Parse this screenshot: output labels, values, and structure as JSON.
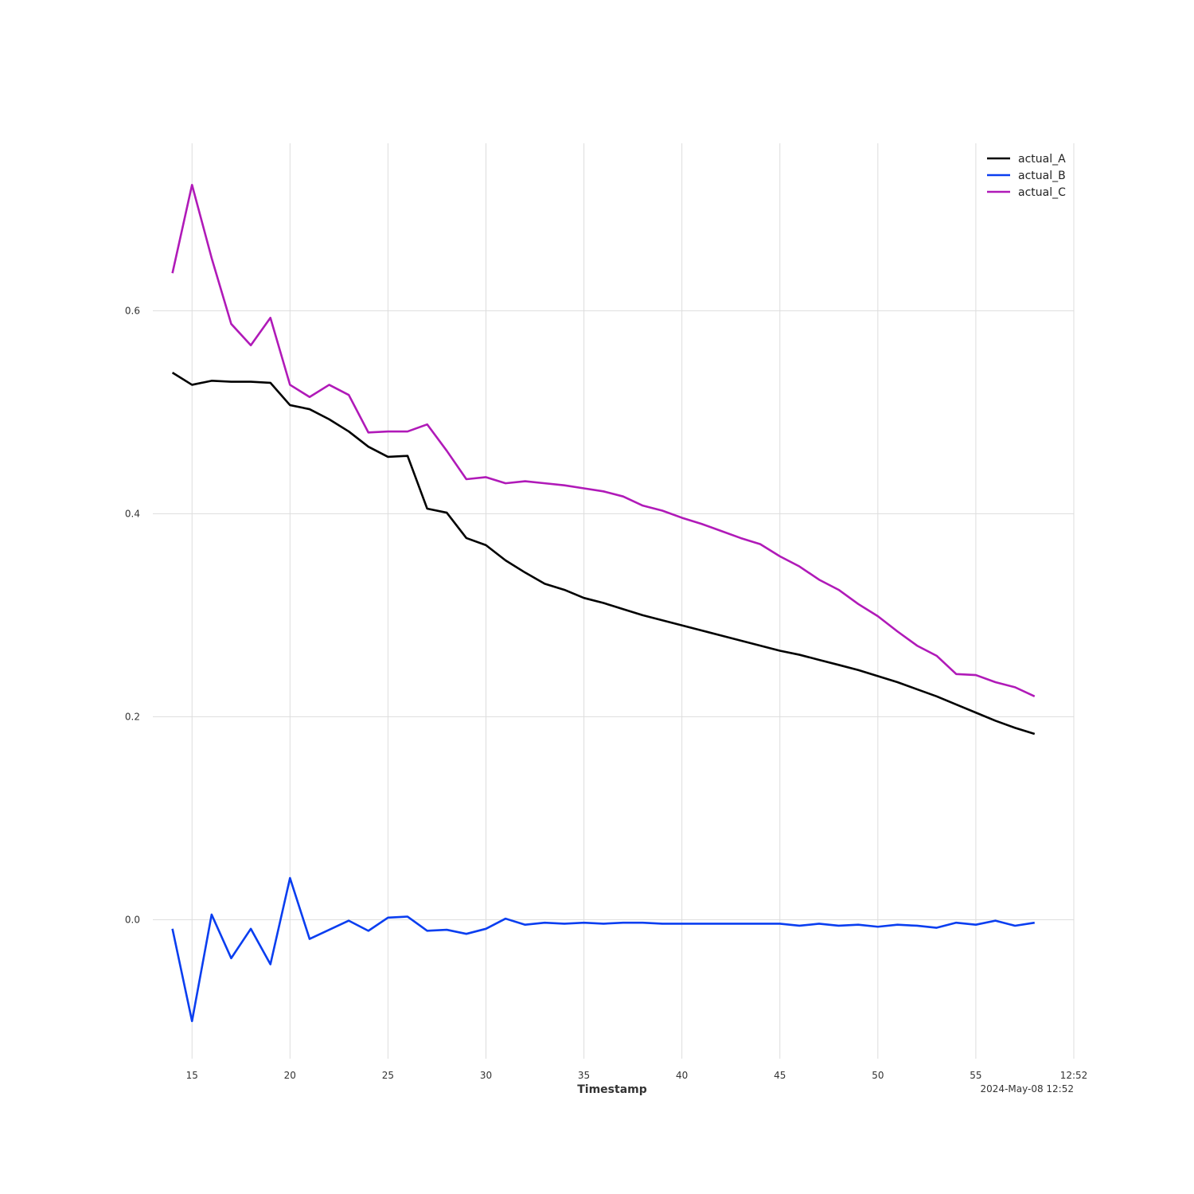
{
  "chart_data": {
    "type": "line",
    "title": "",
    "xlabel": "Timestamp",
    "ylabel": "",
    "x_offset_label": "2024-May-08 12:52",
    "x_tick_values": [
      15,
      20,
      25,
      30,
      35,
      40,
      45,
      50,
      55,
      60
    ],
    "x_tick_labels": [
      "15",
      "20",
      "25",
      "30",
      "35",
      "40",
      "45",
      "50",
      "55",
      "12:52"
    ],
    "y_ticks": [
      0.0,
      0.2,
      0.4,
      0.6
    ],
    "y_tick_labels": [
      "0.0",
      "0.2",
      "0.4",
      "0.6"
    ],
    "xlim": [
      13,
      60
    ],
    "ylim": [
      -0.137,
      0.765
    ],
    "grid": true,
    "legend_position": "top-right",
    "x": [
      14,
      15,
      16,
      17,
      18,
      19,
      20,
      21,
      22,
      23,
      24,
      25,
      26,
      27,
      28,
      29,
      30,
      31,
      32,
      33,
      34,
      35,
      36,
      37,
      38,
      39,
      40,
      41,
      42,
      43,
      44,
      45,
      46,
      47,
      48,
      49,
      50,
      51,
      52,
      53,
      54,
      55,
      56,
      57,
      58
    ],
    "series": [
      {
        "name": "actual_A",
        "color": "#000000",
        "values": [
          0.539,
          0.527,
          0.531,
          0.53,
          0.53,
          0.529,
          0.507,
          0.503,
          0.493,
          0.481,
          0.466,
          0.456,
          0.457,
          0.405,
          0.401,
          0.376,
          0.369,
          0.354,
          0.342,
          0.331,
          0.325,
          0.317,
          0.312,
          0.306,
          0.3,
          0.295,
          0.29,
          0.285,
          0.28,
          0.275,
          0.27,
          0.265,
          0.261,
          0.256,
          0.251,
          0.246,
          0.24,
          0.234,
          0.227,
          0.22,
          0.212,
          0.204,
          0.196,
          0.189,
          0.183
        ]
      },
      {
        "name": "actual_B",
        "color": "#0a3ef0",
        "values": [
          -0.009,
          -0.1,
          0.005,
          -0.038,
          -0.009,
          -0.044,
          0.041,
          -0.019,
          -0.01,
          -0.001,
          -0.011,
          0.002,
          0.003,
          -0.011,
          -0.01,
          -0.014,
          -0.009,
          0.001,
          -0.005,
          -0.003,
          -0.004,
          -0.003,
          -0.004,
          -0.003,
          -0.003,
          -0.004,
          -0.004,
          -0.004,
          -0.004,
          -0.004,
          -0.004,
          -0.004,
          -0.006,
          -0.004,
          -0.006,
          -0.005,
          -0.007,
          -0.005,
          -0.006,
          -0.008,
          -0.003,
          -0.005,
          -0.001,
          -0.006,
          -0.003
        ]
      },
      {
        "name": "actual_C",
        "color": "#b01ab8",
        "values": [
          0.637,
          0.724,
          0.652,
          0.587,
          0.566,
          0.593,
          0.527,
          0.515,
          0.527,
          0.517,
          0.48,
          0.481,
          0.481,
          0.488,
          0.462,
          0.434,
          0.436,
          0.43,
          0.432,
          0.43,
          0.428,
          0.425,
          0.422,
          0.417,
          0.408,
          0.403,
          0.396,
          0.39,
          0.383,
          0.376,
          0.37,
          0.358,
          0.348,
          0.335,
          0.325,
          0.311,
          0.299,
          0.284,
          0.27,
          0.26,
          0.242,
          0.241,
          0.234,
          0.229,
          0.22
        ]
      }
    ]
  }
}
